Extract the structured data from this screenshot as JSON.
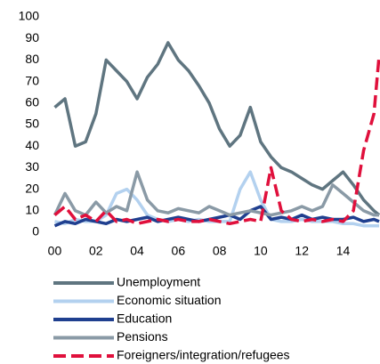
{
  "chart_data": {
    "type": "line",
    "x": [
      2000,
      2000.5,
      2001,
      2001.5,
      2002,
      2002.5,
      2003,
      2003.5,
      2004,
      2004.5,
      2005,
      2005.5,
      2006,
      2006.5,
      2007,
      2007.5,
      2008,
      2008.5,
      2009,
      2009.5,
      2010,
      2010.5,
      2011,
      2011.5,
      2012,
      2012.5,
      2013,
      2013.5,
      2014,
      2014.5,
      2015,
      2015.5,
      2015.75
    ],
    "xlim": [
      1999.85,
      2015.75
    ],
    "xticks": [
      {
        "value": 2000,
        "label": "00"
      },
      {
        "value": 2002,
        "label": "02"
      },
      {
        "value": 2004,
        "label": "04"
      },
      {
        "value": 2006,
        "label": "06"
      },
      {
        "value": 2008,
        "label": "08"
      },
      {
        "value": 2010,
        "label": "10"
      },
      {
        "value": 2012,
        "label": "12"
      },
      {
        "value": 2014,
        "label": "14"
      }
    ],
    "ylim": [
      0,
      100
    ],
    "yticks": [
      0,
      10,
      20,
      30,
      40,
      50,
      60,
      70,
      80,
      90,
      100
    ],
    "grid": false,
    "legend": "bottom",
    "series": [
      {
        "name": "Unemployment",
        "color": "#5f7580",
        "values": [
          58,
          62,
          40,
          42,
          55,
          80,
          75,
          70,
          62,
          72,
          78,
          88,
          80,
          75,
          68,
          60,
          48,
          40,
          45,
          58,
          42,
          35,
          30,
          28,
          25,
          22,
          20,
          24,
          28,
          22,
          15,
          10,
          8
        ]
      },
      {
        "name": "Economic situation",
        "color": "#b3d1ef",
        "values": [
          5,
          4,
          6,
          5,
          5,
          8,
          18,
          20,
          15,
          8,
          6,
          5,
          6,
          5,
          6,
          5,
          5,
          5,
          20,
          28,
          15,
          6,
          5,
          5,
          6,
          5,
          5,
          5,
          4,
          4,
          3,
          3,
          3
        ]
      },
      {
        "name": "Education",
        "color": "#1f3f8f",
        "values": [
          3,
          5,
          4,
          6,
          5,
          4,
          6,
          5,
          6,
          7,
          5,
          6,
          7,
          6,
          5,
          6,
          7,
          8,
          6,
          10,
          12,
          6,
          7,
          6,
          8,
          6,
          7,
          6,
          6,
          7,
          5,
          6,
          5
        ]
      },
      {
        "name": "Pensions",
        "color": "#8a9aa6",
        "values": [
          8,
          18,
          10,
          8,
          14,
          9,
          12,
          10,
          28,
          15,
          10,
          9,
          11,
          10,
          9,
          12,
          10,
          8,
          9,
          10,
          9,
          8,
          9,
          10,
          12,
          10,
          12,
          22,
          18,
          14,
          10,
          8,
          8
        ]
      },
      {
        "name": "Foreigners/integration/refugees",
        "color": "#e0103c",
        "values": [
          8,
          12,
          6,
          8,
          5,
          10,
          5,
          6,
          4,
          5,
          6,
          5,
          6,
          5,
          5,
          6,
          5,
          4,
          5,
          6,
          5,
          30,
          10,
          6,
          5,
          6,
          5,
          6,
          5,
          10,
          38,
          55,
          82
        ]
      }
    ]
  }
}
